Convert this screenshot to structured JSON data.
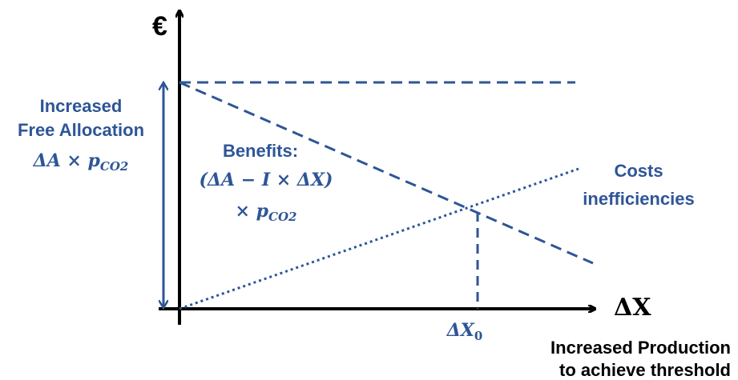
{
  "colors": {
    "axis": "#000000",
    "line": "#2e5597",
    "text_blue": "#2e5597",
    "text_dark": "#000000"
  },
  "y_axis_label": "€",
  "x_axis_label": "ΔX",
  "x_axis_caption": [
    "Increased Production",
    "to achieve threshold"
  ],
  "left_label": {
    "lines": [
      "Increased",
      "Free Allocation"
    ],
    "formula_base": "ΔA × p",
    "formula_sub": "CO2"
  },
  "benefits_label": {
    "title": "Benefits:",
    "formula_line1": "(ΔA − I × ΔX)",
    "formula_line2_base": "× p",
    "formula_line2_sub": "CO2"
  },
  "costs_label": [
    "Costs",
    "inefficiencies"
  ],
  "intersection_label": {
    "base": "ΔX",
    "sub": "0"
  }
}
